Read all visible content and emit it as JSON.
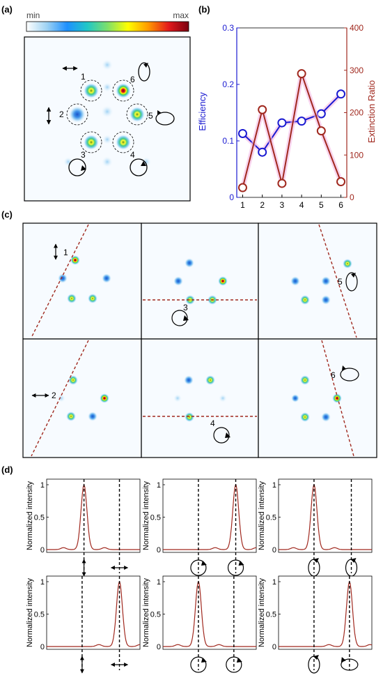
{
  "panel_labels": {
    "a": "(a)",
    "b": "(b)",
    "c": "(c)",
    "d": "(d)"
  },
  "colorbar": {
    "min_label": "min",
    "max_label": "max",
    "stops": [
      "#ffffff",
      "#9fd3f3",
      "#1e90ff",
      "#20c7c7",
      "#7ee06a",
      "#ffff00",
      "#ff9a00",
      "#e41a1c",
      "#7a0010"
    ]
  },
  "colors": {
    "efficiency": "#1a1ad1",
    "extinction": "#a0281e",
    "marker_glow": "#f3b8e2",
    "cut_line": "#a0281e",
    "dashed_marker": "#000000"
  },
  "panel_a": {
    "spot_labels": [
      "1",
      "2",
      "3",
      "4",
      "5",
      "6"
    ],
    "polarization_icons": [
      "horizontal-arrow-icon",
      "vertical-arrow-icon",
      "circular-cw-icon",
      "circular-cw-icon",
      "circular-ccw-icon",
      "circular-ccw-icon"
    ]
  },
  "chart_data": {
    "type": "line",
    "x": [
      1,
      2,
      3,
      4,
      5,
      6
    ],
    "xticks": [
      "1",
      "2",
      "3",
      "4",
      "5",
      "6"
    ],
    "xlim": [
      0.7,
      6.3
    ],
    "series": [
      {
        "name": "Efficiency",
        "axis": "left",
        "values": [
          0.113,
          0.08,
          0.132,
          0.135,
          0.148,
          0.183
        ]
      },
      {
        "name": "Extinction Ratio",
        "axis": "right",
        "values": [
          23,
          207,
          33,
          292,
          157,
          37
        ]
      }
    ],
    "left_axis": {
      "label": "Efficiency",
      "ylim": [
        0,
        0.3
      ],
      "ticks": [
        "0",
        "0.1",
        "0.2",
        "0.3"
      ]
    },
    "right_axis": {
      "label": "Extinction Ratio",
      "ylim": [
        0,
        400
      ],
      "ticks": [
        "0",
        "100",
        "200",
        "300",
        "400"
      ]
    }
  },
  "panel_c": {
    "labels": [
      "1",
      "3",
      "5",
      "2",
      "4",
      "6"
    ]
  },
  "panel_d": {
    "ylabel": "Normalized intensity",
    "yticks": [
      "0",
      "0.5",
      "1"
    ]
  }
}
